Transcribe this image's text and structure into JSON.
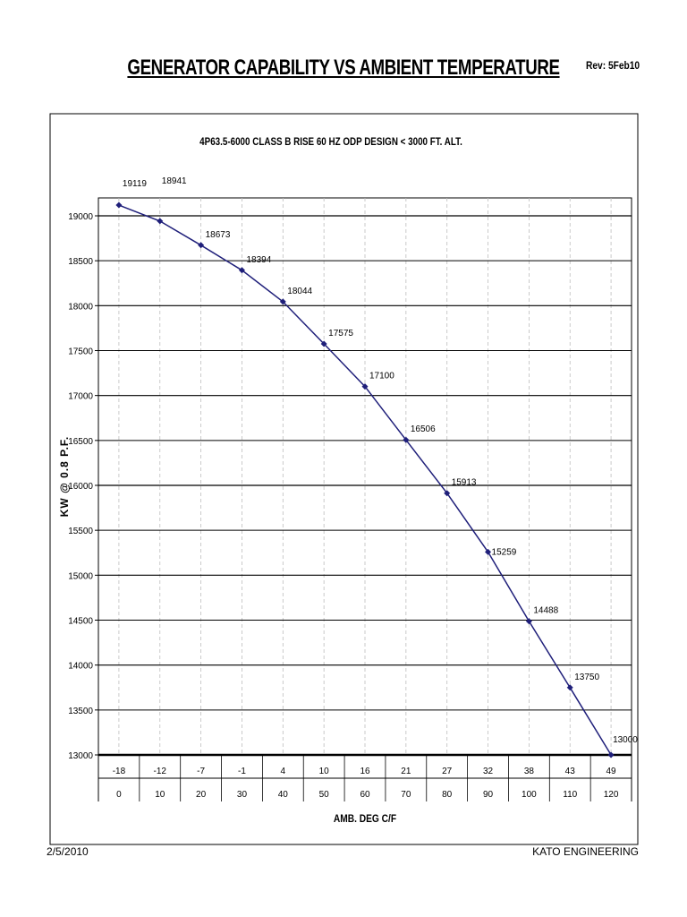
{
  "header": {
    "title": "GENERATOR CAPABILITY  VS  AMBIENT TEMPERATURE",
    "revision": "Rev: 5Feb10"
  },
  "footer": {
    "date": "2/5/2010",
    "company": "KATO ENGINEERING"
  },
  "chart_data": {
    "type": "line",
    "title": "4P63.5-6000  CLASS B RISE  60 HZ  ODP DESIGN  < 3000 FT. ALT.",
    "ylabel": "KW @ 0.8 P.F.",
    "xlabel": "AMB. DEG C/F",
    "x_celsius": [
      "-18",
      "-12",
      "-7",
      "-1",
      "4",
      "10",
      "16",
      "21",
      "27",
      "32",
      "38",
      "43",
      "49"
    ],
    "x_fahrenheit": [
      "0",
      "10",
      "20",
      "30",
      "40",
      "50",
      "60",
      "70",
      "80",
      "90",
      "100",
      "110",
      "120"
    ],
    "x": [
      0,
      10,
      20,
      30,
      40,
      50,
      60,
      70,
      80,
      90,
      100,
      110,
      120
    ],
    "series": [
      {
        "values": [
          19119,
          18941,
          18673,
          18394,
          18044,
          17575,
          17100,
          16506,
          15913,
          15259,
          14488,
          13750,
          13000
        ]
      }
    ],
    "data_labels": [
      "19119",
      "18941",
      "18673",
      "18394",
      "18044",
      "17575",
      "17100",
      "16506",
      "15913",
      "15259",
      "14488",
      "13750",
      "13000"
    ],
    "ylim": [
      13000,
      19200
    ],
    "yticks": [
      13000,
      13500,
      14000,
      14500,
      15000,
      15500,
      16000,
      16500,
      17000,
      17500,
      18000,
      18500,
      19000
    ],
    "grid": true,
    "legend": "none",
    "colors": {
      "line": "#1f1f7a",
      "marker": "#1f1f7a",
      "grid": "#000000",
      "vgrid": "#bdbdbd"
    }
  }
}
